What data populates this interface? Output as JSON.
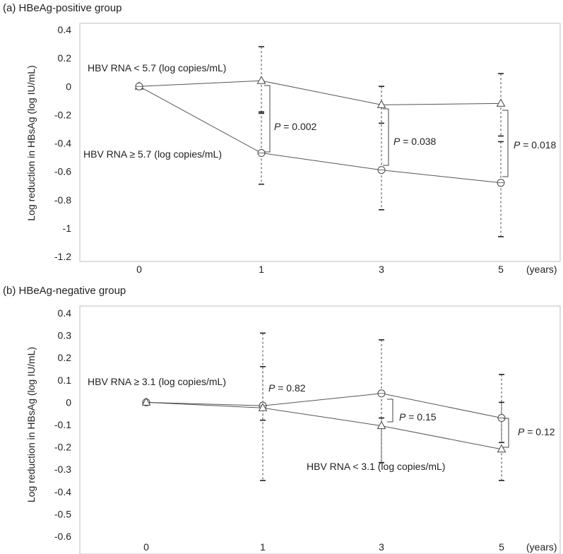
{
  "chart_data": [
    {
      "panel": "a",
      "type": "line",
      "title": "(a) HBeAg-positive group",
      "ylabel": "Log reduction in HBsAg (log IU/mL)",
      "xlabel": "",
      "x_unit": "(years)",
      "categories": [
        "0",
        "1",
        "3",
        "5"
      ],
      "ylim": [
        -1.2,
        0.4
      ],
      "yticks": [
        0.4,
        0.2,
        0,
        -0.2,
        -0.4,
        -0.6,
        -0.8,
        -1,
        -1.2
      ],
      "ytick_labels": [
        "0.4",
        "0.2",
        "0",
        "-0.2",
        "-0.4",
        "-0.6",
        "-0.8",
        "-1",
        "-1.2"
      ],
      "series": [
        {
          "name": "HBV RNA < 5.7 (log copies/mL)",
          "marker": "triangle",
          "values": [
            0,
            0.04,
            -0.13,
            -0.12
          ],
          "upper": [
            0,
            0.28,
            0,
            0.09
          ],
          "lower": [
            0,
            -0.19,
            -0.26,
            -0.35
          ]
        },
        {
          "name": "HBV RNA ≥ 5.7 (log copies/mL)",
          "marker": "circle",
          "values": [
            0,
            -0.47,
            -0.59,
            -0.68
          ],
          "upper": [
            0,
            -0.18,
            0,
            -0.39
          ],
          "lower": [
            0,
            -0.69,
            -0.87,
            -1.06
          ]
        }
      ],
      "pvalues": [
        {
          "at": "1",
          "prefix": "P",
          "text": " = 0.002"
        },
        {
          "at": "3",
          "prefix": "P",
          "text": " = 0.038"
        },
        {
          "at": "5",
          "prefix": "P",
          "text": " = 0.018"
        }
      ]
    },
    {
      "panel": "b",
      "type": "line",
      "title": "(b) HBeAg-negative group",
      "ylabel": "Log reduction in HBsAg (log IU/mL)",
      "xlabel": "",
      "x_unit": "(years)",
      "categories": [
        "0",
        "1",
        "3",
        "5"
      ],
      "ylim": [
        -0.6,
        0.4
      ],
      "yticks": [
        0.4,
        0.3,
        0.2,
        0.1,
        0,
        -0.1,
        -0.2,
        -0.3,
        -0.4,
        -0.5,
        -0.6
      ],
      "ytick_labels": [
        "0.4",
        "0.3",
        "0.2",
        "0.1",
        "0",
        "-0.1",
        "-0.2",
        "-0.3",
        "-0.4",
        "-0.5",
        "-0.6"
      ],
      "series": [
        {
          "name": "HBV RNA ≥ 3.1 (log copies/mL)",
          "marker": "circle",
          "values": [
            0,
            -0.015,
            0.04,
            -0.07
          ],
          "upper": [
            0,
            0.31,
            0.28,
            0.125
          ],
          "lower": [
            0,
            -0.35,
            -0.27,
            -0.18
          ]
        },
        {
          "name": "HBV RNA < 3.1 (log copies/mL)",
          "marker": "triangle",
          "values": [
            0,
            -0.025,
            -0.105,
            -0.21
          ],
          "upper": [
            0,
            0.16,
            -0.07,
            0.0
          ],
          "lower": [
            0,
            -0.08,
            -0.27,
            -0.35
          ]
        }
      ],
      "pvalues": [
        {
          "at": "1",
          "prefix": "P",
          "text": " = 0.82"
        },
        {
          "at": "3",
          "prefix": "P",
          "text": " = 0.15"
        },
        {
          "at": "5",
          "prefix": "P",
          "text": " = 0.12"
        }
      ]
    }
  ]
}
